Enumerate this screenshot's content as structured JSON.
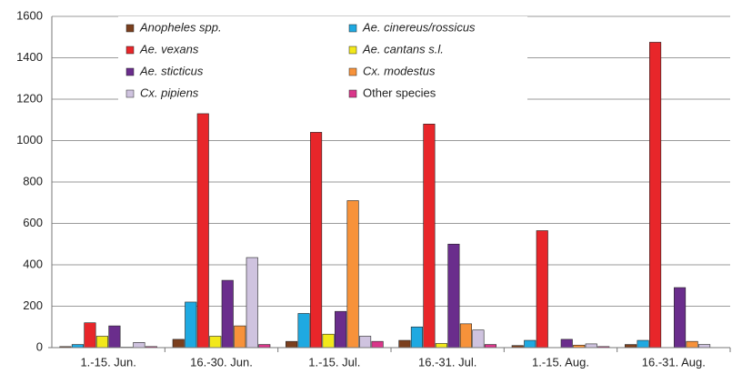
{
  "chart_data": {
    "type": "bar",
    "categories": [
      "1.-15. Jun.",
      "16.-30. Jun.",
      "1.-15. Jul.",
      "16.-31. Jul.",
      "1.-15. Aug.",
      "16.-31. Aug."
    ],
    "series": [
      {
        "name": "Anopheles spp.",
        "color": "#7b3f1e",
        "font_style": "italic",
        "values": [
          5,
          40,
          30,
          35,
          10,
          15
        ]
      },
      {
        "name": "Ae. cinereus/rossicus",
        "color": "#1fa9e1",
        "font_style": "italic",
        "values": [
          15,
          220,
          165,
          100,
          35,
          35
        ]
      },
      {
        "name": "Ae. vexans",
        "color": "#e8262a",
        "font_style": "italic",
        "values": [
          120,
          1130,
          1040,
          1080,
          565,
          1475
        ]
      },
      {
        "name": "Ae. cantans s.l.",
        "color": "#f2e81b",
        "font_style": "italic",
        "values": [
          55,
          55,
          65,
          20,
          0,
          0
        ]
      },
      {
        "name": "Ae. sticticus",
        "color": "#6a2d8c",
        "font_style": "italic",
        "values": [
          105,
          325,
          175,
          500,
          40,
          290
        ]
      },
      {
        "name": "Cx. modestus",
        "color": "#f7923a",
        "font_style": "italic",
        "values": [
          2,
          105,
          710,
          115,
          12,
          30
        ]
      },
      {
        "name": "Cx. pipiens",
        "color": "#cfc3df",
        "font_style": "italic",
        "values": [
          25,
          435,
          55,
          85,
          18,
          15
        ]
      },
      {
        "name": "Other species",
        "color": "#d9368a",
        "font_style": "normal",
        "values": [
          5,
          15,
          30,
          15,
          5,
          0
        ]
      }
    ],
    "ylim": [
      0,
      1600
    ],
    "yticks": [
      0,
      200,
      400,
      600,
      800,
      1000,
      1200,
      1400,
      1600
    ],
    "grid": true,
    "legend": "top"
  }
}
